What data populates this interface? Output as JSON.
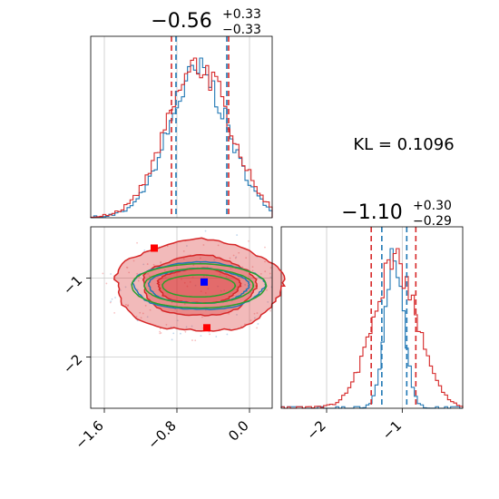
{
  "colors": {
    "blue": "#1f77b4",
    "red": "#d62728",
    "green": "#2ca02c",
    "marker_blue": "#0000ff",
    "marker_red": "#ff0000",
    "grid": "#c8c8c8"
  },
  "annotation": "KL = 0.1096",
  "chart_data": [
    {
      "type": "histogram",
      "panel": "top-left",
      "title_main": "−0.56",
      "title_sup": "+0.33",
      "title_sub": "−0.33",
      "xlim": [
        -1.75,
        0.25
      ],
      "grid": true,
      "bins": 60,
      "series": [
        {
          "color": "blue",
          "mean": -0.56,
          "sd": 0.33,
          "quantiles": [
            -0.81,
            -0.25
          ]
        },
        {
          "color": "red",
          "mean": -0.56,
          "sd": 0.35,
          "quantiles": [
            -0.86,
            -0.23
          ]
        }
      ]
    },
    {
      "type": "histogram",
      "panel": "bottom-right",
      "title_main": "−1.10",
      "title_sup": "+0.30",
      "title_sub": "−0.29",
      "xlim": [
        -2.6,
        -0.2
      ],
      "xticks": [
        -2,
        -1
      ],
      "xticklabels": [
        "−2",
        "−1"
      ],
      "grid": true,
      "bins": 60,
      "series": [
        {
          "color": "blue",
          "mean": -1.1,
          "sd": 0.12,
          "quantiles": [
            -1.27,
            -0.94
          ]
        },
        {
          "color": "red",
          "mean": -1.1,
          "sd": 0.3,
          "quantiles": [
            -1.41,
            -0.82
          ]
        }
      ]
    },
    {
      "type": "contour",
      "panel": "bottom-left",
      "xlim": [
        -1.75,
        0.25
      ],
      "ylim": [
        -2.65,
        -0.35
      ],
      "xticks": [
        -1.6,
        -0.8,
        0.0
      ],
      "xticklabels": [
        "−1.6",
        "−0.8",
        "0.0"
      ],
      "yticks": [
        -1,
        -2
      ],
      "yticklabels": [
        "−1",
        "−2"
      ],
      "grid": true,
      "center": [
        -0.56,
        -1.1
      ],
      "levels": [
        {
          "color": "red",
          "filled": true,
          "rx": 0.92,
          "ry": 0.58
        },
        {
          "color": "red",
          "filled": true,
          "rx": 0.62,
          "ry": 0.38
        },
        {
          "color": "red",
          "filled": true,
          "rx": 0.45,
          "ry": 0.22
        },
        {
          "color": "blue",
          "filled": false,
          "rx": 0.72,
          "ry": 0.3
        },
        {
          "color": "blue",
          "filled": false,
          "rx": 0.55,
          "ry": 0.22
        },
        {
          "color": "green",
          "filled": false,
          "rx": 0.74,
          "ry": 0.28
        },
        {
          "color": "green",
          "filled": false,
          "rx": 0.6,
          "ry": 0.22
        },
        {
          "color": "green",
          "filled": false,
          "rx": 0.4,
          "ry": 0.14
        }
      ],
      "markers": [
        {
          "color": "marker_blue",
          "x": -0.5,
          "y": -1.05
        },
        {
          "color": "marker_red",
          "x": -1.05,
          "y": -0.62
        },
        {
          "color": "marker_red",
          "x": -0.47,
          "y": -1.63
        }
      ]
    }
  ]
}
